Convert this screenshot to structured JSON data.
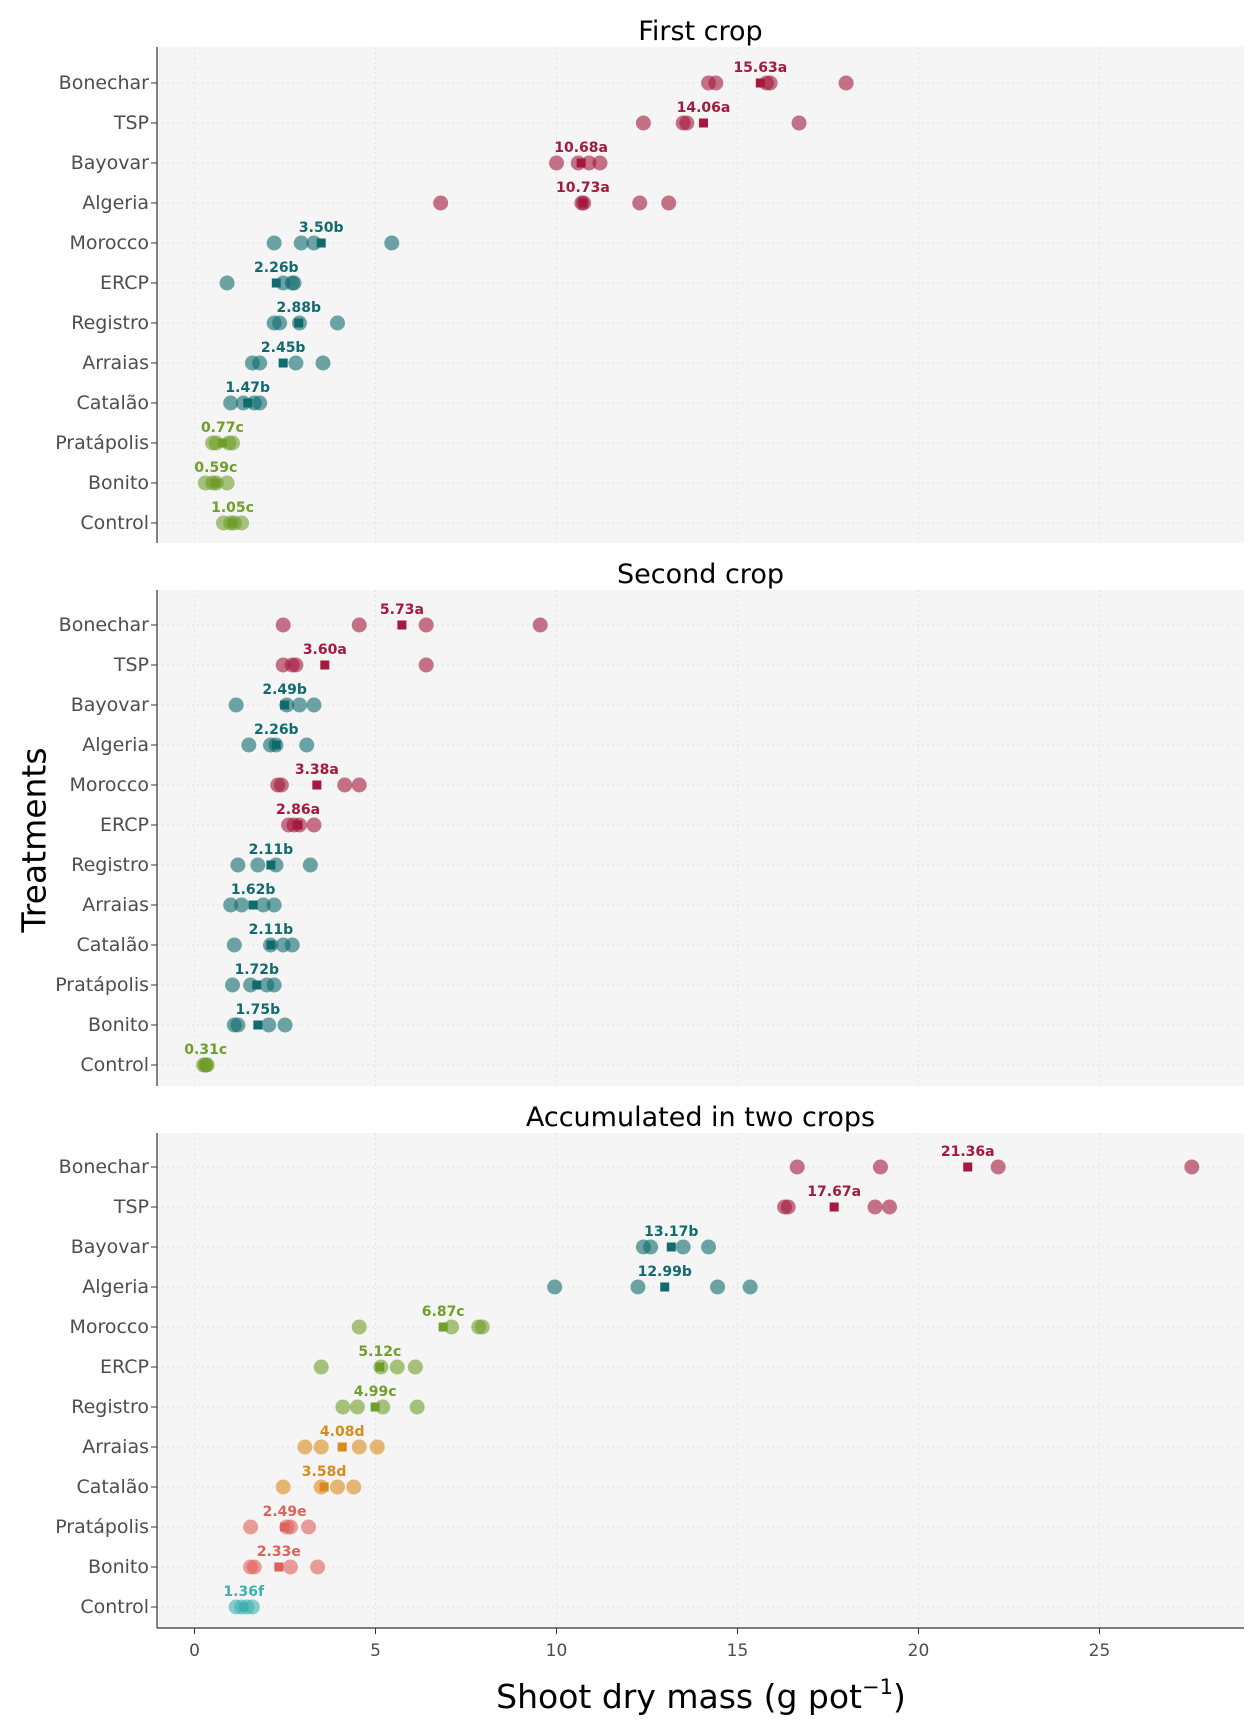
{
  "chart_data": [
    {
      "type": "scatter",
      "title": "First crop",
      "categories": [
        "Bonechar",
        "TSP",
        "Bayovar",
        "Algeria",
        "Morocco",
        "ERCP",
        "Registro",
        "Arraias",
        "Catalão",
        "Pratápolis",
        "Bonito",
        "Control"
      ],
      "xlim": [
        -1,
        28.5
      ],
      "x_ticks": [],
      "grid": true,
      "groups": [
        {
          "name": "Bonechar",
          "points": [
            14.2,
            14.4,
            15.8,
            15.9,
            18.0
          ],
          "mean": 15.63,
          "label": "15.63a",
          "color": "#a4193d"
        },
        {
          "name": "TSP",
          "points": [
            12.4,
            13.5,
            13.6,
            16.7
          ],
          "mean": 14.06,
          "label": "14.06a",
          "color": "#a4193d"
        },
        {
          "name": "Bayovar",
          "points": [
            10.0,
            10.6,
            10.9,
            11.2
          ],
          "mean": 10.68,
          "label": "10.68a",
          "color": "#a4193d"
        },
        {
          "name": "Algeria",
          "points": [
            6.8,
            10.7,
            10.75,
            12.3,
            13.1
          ],
          "mean": 10.73,
          "label": "10.73a",
          "color": "#a4193d"
        },
        {
          "name": "Morocco",
          "points": [
            2.2,
            2.95,
            3.3,
            5.45
          ],
          "mean": 3.5,
          "label": "3.50b",
          "color": "#0f6b6e"
        },
        {
          "name": "ERCP",
          "points": [
            0.9,
            2.45,
            2.7,
            2.75
          ],
          "mean": 2.26,
          "label": "2.26b",
          "color": "#0f6b6e"
        },
        {
          "name": "Registro",
          "points": [
            2.2,
            2.35,
            2.9,
            3.95
          ],
          "mean": 2.88,
          "label": "2.88b",
          "color": "#0f6b6e"
        },
        {
          "name": "Arraias",
          "points": [
            1.6,
            1.8,
            2.8,
            3.55
          ],
          "mean": 2.45,
          "label": "2.45b",
          "color": "#0f6b6e"
        },
        {
          "name": "Catalão",
          "points": [
            1.0,
            1.35,
            1.65,
            1.8
          ],
          "mean": 1.47,
          "label": "1.47b",
          "color": "#0f6b6e"
        },
        {
          "name": "Pratápolis",
          "points": [
            0.5,
            0.6,
            0.95,
            1.05
          ],
          "mean": 0.77,
          "label": "0.77c",
          "color": "#6f9e2a"
        },
        {
          "name": "Bonito",
          "points": [
            0.3,
            0.5,
            0.6,
            0.9
          ],
          "mean": 0.59,
          "label": "0.59c",
          "color": "#6f9e2a"
        },
        {
          "name": "Control",
          "points": [
            0.8,
            1.0,
            1.1,
            1.3
          ],
          "mean": 1.05,
          "label": "1.05c",
          "color": "#6f9e2a"
        }
      ]
    },
    {
      "type": "scatter",
      "title": "Second crop",
      "categories": [
        "Bonechar",
        "TSP",
        "Bayovar",
        "Algeria",
        "Morocco",
        "ERCP",
        "Registro",
        "Arraias",
        "Catalão",
        "Pratápolis",
        "Bonito",
        "Control"
      ],
      "xlim": [
        -1,
        28.5
      ],
      "x_ticks": [],
      "grid": true,
      "groups": [
        {
          "name": "Bonechar",
          "points": [
            2.45,
            4.55,
            6.4,
            9.55
          ],
          "mean": 5.73,
          "label": "5.73a",
          "color": "#a4193d"
        },
        {
          "name": "TSP",
          "points": [
            2.45,
            2.7,
            2.8,
            6.4
          ],
          "mean": 3.6,
          "label": "3.60a",
          "color": "#a4193d"
        },
        {
          "name": "Bayovar",
          "points": [
            1.15,
            2.55,
            2.9,
            3.3
          ],
          "mean": 2.49,
          "label": "2.49b",
          "color": "#0f6b6e"
        },
        {
          "name": "Algeria",
          "points": [
            1.5,
            2.1,
            2.25,
            3.1
          ],
          "mean": 2.26,
          "label": "2.26b",
          "color": "#0f6b6e"
        },
        {
          "name": "Morocco",
          "points": [
            2.3,
            2.4,
            4.15,
            4.55
          ],
          "mean": 3.38,
          "label": "3.38a",
          "color": "#a4193d"
        },
        {
          "name": "ERCP",
          "points": [
            2.6,
            2.75,
            2.9,
            3.3
          ],
          "mean": 2.86,
          "label": "2.86a",
          "color": "#a4193d"
        },
        {
          "name": "Registro",
          "points": [
            1.2,
            1.75,
            2.25,
            3.2
          ],
          "mean": 2.11,
          "label": "2.11b",
          "color": "#0f6b6e"
        },
        {
          "name": "Arraias",
          "points": [
            1.0,
            1.3,
            1.9,
            2.2
          ],
          "mean": 1.62,
          "label": "1.62b",
          "color": "#0f6b6e"
        },
        {
          "name": "Catalão",
          "points": [
            1.1,
            2.1,
            2.45,
            2.7
          ],
          "mean": 2.11,
          "label": "2.11b",
          "color": "#0f6b6e"
        },
        {
          "name": "Pratápolis",
          "points": [
            1.05,
            1.55,
            2.0,
            2.2
          ],
          "mean": 1.72,
          "label": "1.72b",
          "color": "#0f6b6e"
        },
        {
          "name": "Bonito",
          "points": [
            1.1,
            1.2,
            2.05,
            2.5
          ],
          "mean": 1.75,
          "label": "1.75b",
          "color": "#0f6b6e"
        },
        {
          "name": "Control",
          "points": [
            0.25,
            0.3,
            0.32,
            0.35
          ],
          "mean": 0.31,
          "label": "0.31c",
          "color": "#6f9e2a"
        }
      ]
    },
    {
      "type": "scatter",
      "title": "Accumulated in two crops",
      "categories": [
        "Bonechar",
        "TSP",
        "Bayovar",
        "Algeria",
        "Morocco",
        "ERCP",
        "Registro",
        "Arraias",
        "Catalão",
        "Pratápolis",
        "Bonito",
        "Control"
      ],
      "xlim": [
        -1,
        28.5
      ],
      "x_ticks": [
        0,
        5,
        10,
        15,
        20,
        25
      ],
      "xlabel_main": "Shoot dry mass (g pot",
      "xlabel_sup": "−1",
      "xlabel_end": ")",
      "grid": true,
      "groups": [
        {
          "name": "Bonechar",
          "points": [
            16.65,
            18.95,
            22.2,
            27.55
          ],
          "mean": 21.36,
          "label": "21.36a",
          "color": "#a4193d"
        },
        {
          "name": "TSP",
          "points": [
            16.3,
            16.4,
            18.8,
            19.2
          ],
          "mean": 17.67,
          "label": "17.67a",
          "color": "#a4193d"
        },
        {
          "name": "Bayovar",
          "points": [
            12.4,
            12.6,
            13.5,
            14.2
          ],
          "mean": 13.17,
          "label": "13.17b",
          "color": "#0f6b6e"
        },
        {
          "name": "Algeria",
          "points": [
            9.95,
            12.25,
            14.45,
            15.35
          ],
          "mean": 12.99,
          "label": "12.99b",
          "color": "#0f6b6e"
        },
        {
          "name": "Morocco",
          "points": [
            4.55,
            7.1,
            7.85,
            7.95
          ],
          "mean": 6.87,
          "label": "6.87c",
          "color": "#6f9e2a"
        },
        {
          "name": "ERCP",
          "points": [
            3.5,
            5.15,
            5.6,
            6.1
          ],
          "mean": 5.12,
          "label": "5.12c",
          "color": "#6f9e2a"
        },
        {
          "name": "Registro",
          "points": [
            4.1,
            4.5,
            5.2,
            6.15
          ],
          "mean": 4.99,
          "label": "4.99c",
          "color": "#6f9e2a"
        },
        {
          "name": "Arraias",
          "points": [
            3.05,
            3.5,
            4.55,
            5.05
          ],
          "mean": 4.08,
          "label": "4.08d",
          "color": "#d98a1c"
        },
        {
          "name": "Catalão",
          "points": [
            2.45,
            3.5,
            3.95,
            4.4
          ],
          "mean": 3.58,
          "label": "3.58d",
          "color": "#d98a1c"
        },
        {
          "name": "Pratápolis",
          "points": [
            1.55,
            2.55,
            2.65,
            3.15
          ],
          "mean": 2.49,
          "label": "2.49e",
          "color": "#e0605a"
        },
        {
          "name": "Bonito",
          "points": [
            1.55,
            1.65,
            2.65,
            3.4
          ],
          "mean": 2.33,
          "label": "2.33e",
          "color": "#e0605a"
        },
        {
          "name": "Control",
          "points": [
            1.15,
            1.3,
            1.45,
            1.6
          ],
          "mean": 1.36,
          "label": "1.36f",
          "color": "#3fb0b0"
        }
      ]
    }
  ],
  "y_axis_title": "Treatments"
}
